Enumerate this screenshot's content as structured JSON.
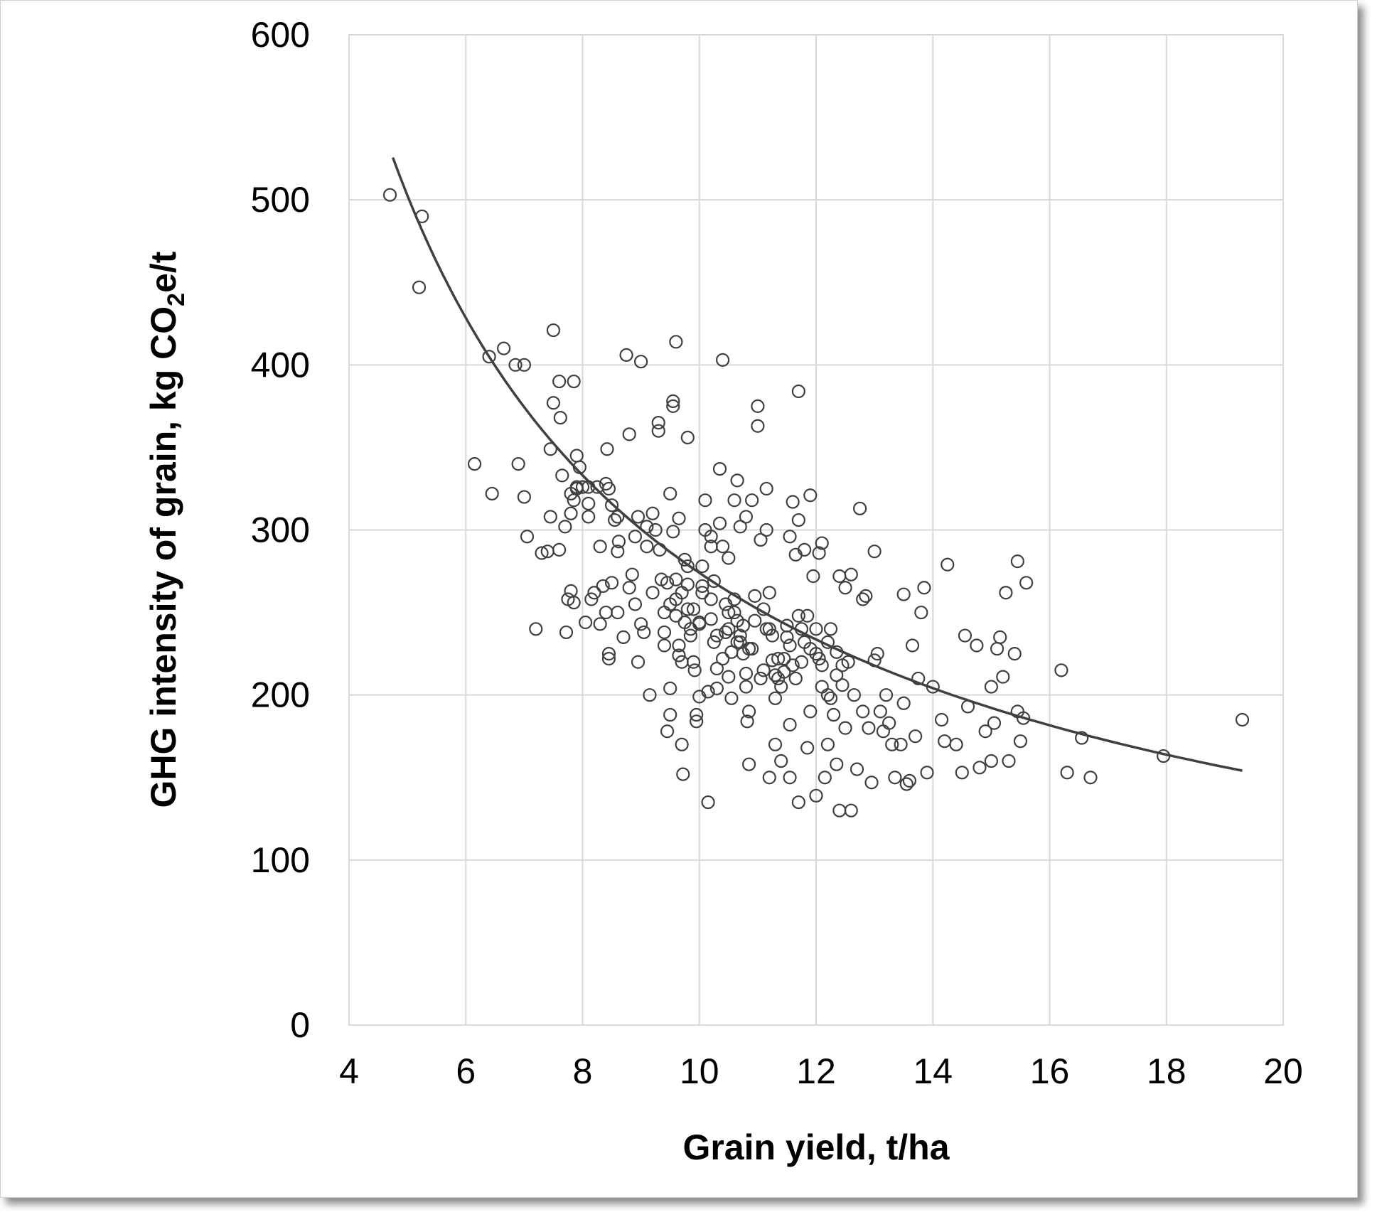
{
  "chart_data": {
    "type": "scatter",
    "title": "",
    "xlabel": "Grain yield, t/ha",
    "ylabel_main": "GHG intensity of grain, kg CO",
    "ylabel_sub": "2",
    "ylabel_tail": "e/t",
    "xlim": [
      4,
      20
    ],
    "ylim": [
      0,
      600
    ],
    "xticks": [
      4,
      6,
      8,
      10,
      12,
      14,
      16,
      18,
      20
    ],
    "yticks": [
      0,
      100,
      200,
      300,
      400,
      500,
      600
    ],
    "grid": true,
    "legend": "none",
    "marker": "open-circle",
    "trendline": {
      "type": "power",
      "a": 2055,
      "b": -0.875,
      "x_range": [
        4.75,
        19.3
      ]
    },
    "points": [
      [
        4.7,
        503
      ],
      [
        5.25,
        490
      ],
      [
        5.2,
        447
      ],
      [
        6.15,
        340
      ],
      [
        6.45,
        322
      ],
      [
        6.4,
        405
      ],
      [
        6.65,
        410
      ],
      [
        6.85,
        400
      ],
      [
        7.0,
        400
      ],
      [
        6.9,
        340
      ],
      [
        7.0,
        320
      ],
      [
        7.05,
        296
      ],
      [
        7.2,
        240
      ],
      [
        7.3,
        286
      ],
      [
        7.4,
        287
      ],
      [
        7.45,
        308
      ],
      [
        7.45,
        349
      ],
      [
        7.5,
        421
      ],
      [
        7.5,
        377
      ],
      [
        7.6,
        390
      ],
      [
        7.62,
        368
      ],
      [
        7.65,
        333
      ],
      [
        7.6,
        288
      ],
      [
        7.7,
        302
      ],
      [
        7.72,
        238
      ],
      [
        7.75,
        258
      ],
      [
        7.8,
        263
      ],
      [
        7.8,
        310
      ],
      [
        7.85,
        390
      ],
      [
        7.85,
        256
      ],
      [
        7.9,
        345
      ],
      [
        7.95,
        338
      ],
      [
        7.9,
        325
      ],
      [
        7.8,
        322
      ],
      [
        7.85,
        318
      ],
      [
        7.9,
        326
      ],
      [
        8.0,
        326
      ],
      [
        8.1,
        316
      ],
      [
        8.1,
        308
      ],
      [
        8.1,
        326
      ],
      [
        8.15,
        258
      ],
      [
        8.05,
        244
      ],
      [
        8.2,
        262
      ],
      [
        8.25,
        326
      ],
      [
        8.3,
        243
      ],
      [
        8.3,
        290
      ],
      [
        8.35,
        266
      ],
      [
        8.4,
        250
      ],
      [
        8.42,
        349
      ],
      [
        8.45,
        225
      ],
      [
        8.45,
        222
      ],
      [
        8.4,
        328
      ],
      [
        8.45,
        325
      ],
      [
        8.5,
        268
      ],
      [
        8.5,
        315
      ],
      [
        8.55,
        306
      ],
      [
        8.6,
        250
      ],
      [
        8.6,
        287
      ],
      [
        8.62,
        293
      ],
      [
        8.6,
        308
      ],
      [
        8.7,
        235
      ],
      [
        8.75,
        406
      ],
      [
        8.8,
        358
      ],
      [
        8.8,
        265
      ],
      [
        8.85,
        273
      ],
      [
        8.9,
        255
      ],
      [
        8.9,
        296
      ],
      [
        8.95,
        220
      ],
      [
        9.0,
        402
      ],
      [
        8.95,
        308
      ],
      [
        9.0,
        243
      ],
      [
        9.05,
        238
      ],
      [
        9.1,
        290
      ],
      [
        9.1,
        302
      ],
      [
        9.15,
        200
      ],
      [
        9.2,
        310
      ],
      [
        9.2,
        262
      ],
      [
        9.25,
        300
      ],
      [
        9.3,
        365
      ],
      [
        9.3,
        360
      ],
      [
        9.32,
        288
      ],
      [
        9.35,
        270
      ],
      [
        9.4,
        230
      ],
      [
        9.4,
        238
      ],
      [
        9.45,
        178
      ],
      [
        9.5,
        188
      ],
      [
        9.5,
        204
      ],
      [
        9.5,
        255
      ],
      [
        9.5,
        322
      ],
      [
        9.55,
        299
      ],
      [
        9.55,
        375
      ],
      [
        9.55,
        378
      ],
      [
        9.6,
        414
      ],
      [
        9.6,
        270
      ],
      [
        9.6,
        248
      ],
      [
        9.65,
        307
      ],
      [
        9.65,
        230
      ],
      [
        9.65,
        224
      ],
      [
        9.7,
        262
      ],
      [
        9.7,
        220
      ],
      [
        9.72,
        152
      ],
      [
        9.7,
        170
      ],
      [
        9.75,
        282
      ],
      [
        9.8,
        356
      ],
      [
        9.8,
        278
      ],
      [
        9.8,
        267
      ],
      [
        9.8,
        252
      ],
      [
        9.85,
        240
      ],
      [
        9.9,
        220
      ],
      [
        9.92,
        215
      ],
      [
        9.95,
        188
      ],
      [
        9.95,
        184
      ],
      [
        10.0,
        244
      ],
      [
        10.0,
        243
      ],
      [
        10.0,
        199
      ],
      [
        10.05,
        278
      ],
      [
        10.05,
        266
      ],
      [
        10.1,
        318
      ],
      [
        10.1,
        300
      ],
      [
        10.15,
        135
      ],
      [
        10.15,
        202
      ],
      [
        10.2,
        296
      ],
      [
        10.2,
        290
      ],
      [
        10.2,
        258
      ],
      [
        10.25,
        269
      ],
      [
        10.25,
        232
      ],
      [
        10.3,
        236
      ],
      [
        10.3,
        204
      ],
      [
        10.35,
        337
      ],
      [
        10.35,
        304
      ],
      [
        10.4,
        403
      ],
      [
        10.4,
        290
      ],
      [
        10.45,
        255
      ],
      [
        10.5,
        283
      ],
      [
        10.5,
        250
      ],
      [
        10.5,
        211
      ],
      [
        10.55,
        198
      ],
      [
        10.6,
        318
      ],
      [
        10.6,
        258
      ],
      [
        10.65,
        330
      ],
      [
        10.65,
        245
      ],
      [
        10.7,
        302
      ],
      [
        10.7,
        232
      ],
      [
        10.75,
        225
      ],
      [
        10.8,
        308
      ],
      [
        10.8,
        213
      ],
      [
        10.82,
        184
      ],
      [
        10.8,
        205
      ],
      [
        10.85,
        190
      ],
      [
        10.85,
        158
      ],
      [
        10.9,
        318
      ],
      [
        10.95,
        260
      ],
      [
        11.0,
        375
      ],
      [
        11.0,
        363
      ],
      [
        11.05,
        294
      ],
      [
        11.05,
        210
      ],
      [
        11.1,
        215
      ],
      [
        11.15,
        325
      ],
      [
        11.15,
        300
      ],
      [
        11.2,
        262
      ],
      [
        11.2,
        240
      ],
      [
        11.2,
        150
      ],
      [
        11.25,
        221
      ],
      [
        11.3,
        198
      ],
      [
        11.3,
        170
      ],
      [
        11.35,
        210
      ],
      [
        11.4,
        160
      ],
      [
        11.45,
        222
      ],
      [
        11.5,
        242
      ],
      [
        11.55,
        296
      ],
      [
        11.55,
        182
      ],
      [
        11.55,
        150
      ],
      [
        11.6,
        317
      ],
      [
        11.65,
        285
      ],
      [
        11.7,
        384
      ],
      [
        11.7,
        306
      ],
      [
        11.7,
        135
      ],
      [
        11.75,
        240
      ],
      [
        11.75,
        220
      ],
      [
        11.8,
        288
      ],
      [
        11.85,
        248
      ],
      [
        11.85,
        168
      ],
      [
        11.9,
        321
      ],
      [
        11.9,
        190
      ],
      [
        11.95,
        272
      ],
      [
        12.0,
        240
      ],
      [
        12.0,
        139
      ],
      [
        12.05,
        286
      ],
      [
        12.05,
        222
      ],
      [
        12.1,
        292
      ],
      [
        12.1,
        218
      ],
      [
        12.15,
        150
      ],
      [
        12.2,
        200
      ],
      [
        12.2,
        170
      ],
      [
        12.25,
        198
      ],
      [
        12.3,
        188
      ],
      [
        12.35,
        226
      ],
      [
        12.35,
        158
      ],
      [
        12.4,
        272
      ],
      [
        12.4,
        130
      ],
      [
        12.45,
        206
      ],
      [
        12.5,
        265
      ],
      [
        12.5,
        180
      ],
      [
        12.55,
        220
      ],
      [
        12.6,
        273
      ],
      [
        12.6,
        130
      ],
      [
        12.65,
        200
      ],
      [
        12.7,
        155
      ],
      [
        12.75,
        313
      ],
      [
        12.8,
        258
      ],
      [
        12.8,
        190
      ],
      [
        12.85,
        260
      ],
      [
        12.9,
        180
      ],
      [
        12.95,
        147
      ],
      [
        13.0,
        287
      ],
      [
        13.0,
        221
      ],
      [
        13.05,
        225
      ],
      [
        13.1,
        190
      ],
      [
        13.15,
        178
      ],
      [
        13.2,
        200
      ],
      [
        13.25,
        183
      ],
      [
        13.3,
        170
      ],
      [
        13.35,
        150
      ],
      [
        13.45,
        170
      ],
      [
        13.5,
        261
      ],
      [
        13.5,
        195
      ],
      [
        13.55,
        146
      ],
      [
        13.6,
        148
      ],
      [
        13.65,
        230
      ],
      [
        13.7,
        175
      ],
      [
        13.75,
        210
      ],
      [
        13.8,
        250
      ],
      [
        13.85,
        265
      ],
      [
        13.9,
        153
      ],
      [
        14.0,
        205
      ],
      [
        14.15,
        185
      ],
      [
        14.2,
        172
      ],
      [
        14.25,
        279
      ],
      [
        14.4,
        170
      ],
      [
        14.5,
        153
      ],
      [
        14.55,
        236
      ],
      [
        14.6,
        193
      ],
      [
        14.75,
        230
      ],
      [
        14.8,
        156
      ],
      [
        14.9,
        178
      ],
      [
        15.0,
        205
      ],
      [
        15.0,
        160
      ],
      [
        15.05,
        183
      ],
      [
        15.1,
        228
      ],
      [
        15.15,
        235
      ],
      [
        15.2,
        211
      ],
      [
        15.25,
        262
      ],
      [
        15.3,
        160
      ],
      [
        15.4,
        225
      ],
      [
        15.45,
        281
      ],
      [
        15.45,
        190
      ],
      [
        15.5,
        172
      ],
      [
        15.55,
        186
      ],
      [
        15.6,
        268
      ],
      [
        16.2,
        215
      ],
      [
        16.3,
        153
      ],
      [
        16.55,
        174
      ],
      [
        16.7,
        150
      ],
      [
        17.95,
        163
      ],
      [
        19.3,
        185
      ],
      [
        10.5,
        240
      ],
      [
        10.7,
        236
      ],
      [
        10.55,
        226
      ],
      [
        10.6,
        250
      ],
      [
        10.75,
        242
      ],
      [
        10.65,
        232
      ],
      [
        10.85,
        228
      ],
      [
        10.45,
        238
      ],
      [
        11.35,
        222
      ],
      [
        11.45,
        214
      ],
      [
        11.55,
        230
      ],
      [
        11.4,
        205
      ],
      [
        11.6,
        218
      ],
      [
        11.5,
        235
      ],
      [
        11.65,
        210
      ],
      [
        11.3,
        212
      ],
      [
        12.0,
        225
      ],
      [
        12.2,
        232
      ],
      [
        12.35,
        212
      ],
      [
        12.1,
        205
      ],
      [
        11.9,
        228
      ],
      [
        12.45,
        218
      ],
      [
        12.25,
        240
      ],
      [
        11.8,
        232
      ],
      [
        9.6,
        258
      ],
      [
        9.9,
        252
      ],
      [
        10.2,
        246
      ],
      [
        9.4,
        250
      ],
      [
        9.75,
        244
      ],
      [
        10.05,
        262
      ],
      [
        9.45,
        268
      ],
      [
        9.85,
        236
      ],
      [
        10.95,
        245
      ],
      [
        11.1,
        252
      ],
      [
        11.25,
        236
      ],
      [
        10.9,
        228
      ],
      [
        11.15,
        240
      ],
      [
        10.4,
        222
      ],
      [
        10.3,
        216
      ],
      [
        11.7,
        248
      ]
    ]
  }
}
